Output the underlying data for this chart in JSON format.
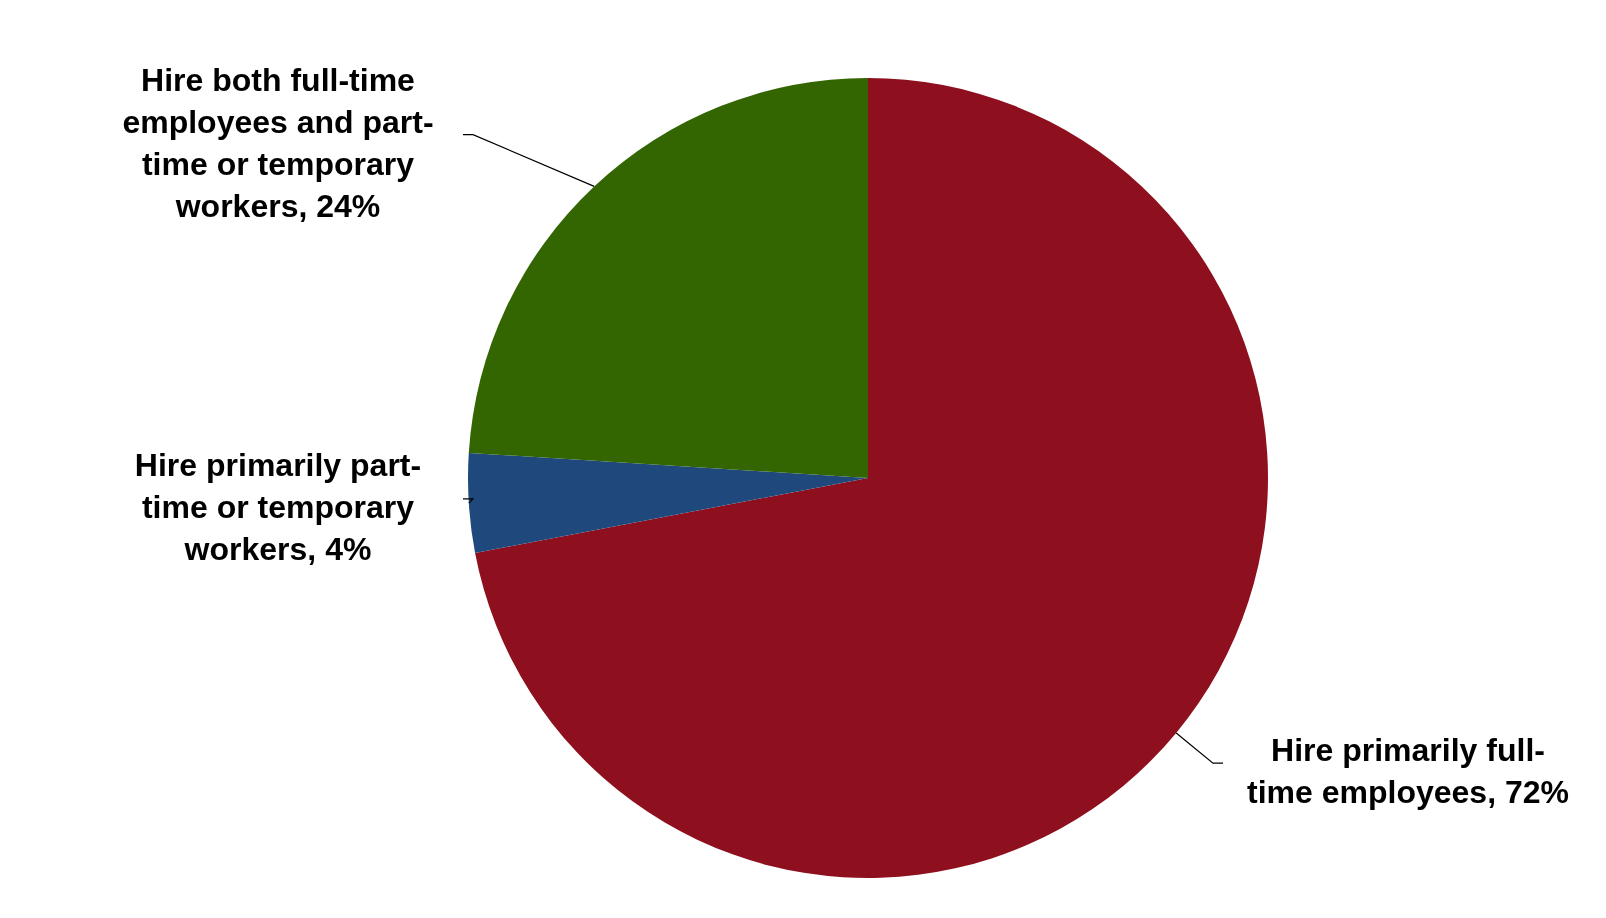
{
  "chart_data": {
    "type": "pie",
    "categories": [
      "Hire primarily full-time employees",
      "Hire primarily part-time or temporary workers",
      "Hire both full-time employees and part-time or temporary workers"
    ],
    "values": [
      72,
      4,
      24
    ],
    "value_labels": [
      "72%",
      "4%",
      "24%"
    ],
    "colors": [
      "#8e101e",
      "#1f497d",
      "#336600"
    ]
  }
}
